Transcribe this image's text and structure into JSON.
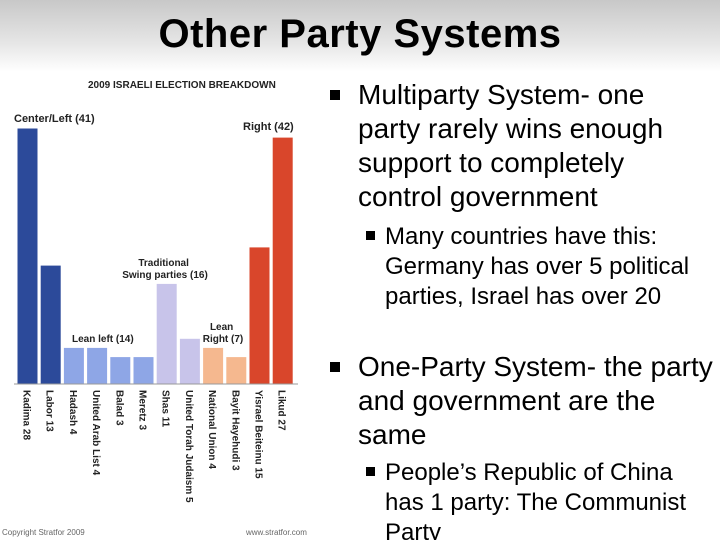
{
  "slide": {
    "title": "Other Party Systems",
    "bullets": [
      {
        "text": "Multiparty System- one party rarely wins enough support to completely control government",
        "sub": "Many countries have this: Germany has over 5 political parties, Israel has over 20"
      },
      {
        "text": "One-Party System- the party and government are the same",
        "sub": "People’s Republic of China has 1 party: The Communist Party"
      }
    ]
  },
  "chart_data": {
    "type": "bar",
    "title": "2009 ISRAELI ELECTION BREAKDOWN",
    "categories": [
      "Kadima 28",
      "Labor 13",
      "Hadash 4",
      "United Arab List 4",
      "Balad 3",
      "Meretz 3",
      "Shas 11",
      "United Torah Judaism 5",
      "National Union 4",
      "Bayit Hayehudi 3",
      "Yisrael Beiteinu 15",
      "Likud 27"
    ],
    "values": [
      28,
      13,
      4,
      4,
      3,
      3,
      11,
      5,
      4,
      3,
      15,
      27
    ],
    "colors": [
      "#2c4a9a",
      "#2c4a9a",
      "#8ea6e6",
      "#8ea6e6",
      "#8ea6e6",
      "#8ea6e6",
      "#c8c4ea",
      "#c8c4ea",
      "#f5b88f",
      "#f5b88f",
      "#d9462b",
      "#d9462b"
    ],
    "group_labels": [
      "Center/Left (41)",
      "Right (42)",
      "Traditional Swing parties (16)",
      "Lean left (14)",
      "Lean Right (7)"
    ],
    "footer_left": "Copyright Stratfor 2009",
    "footer_right": "www.stratfor.com"
  }
}
